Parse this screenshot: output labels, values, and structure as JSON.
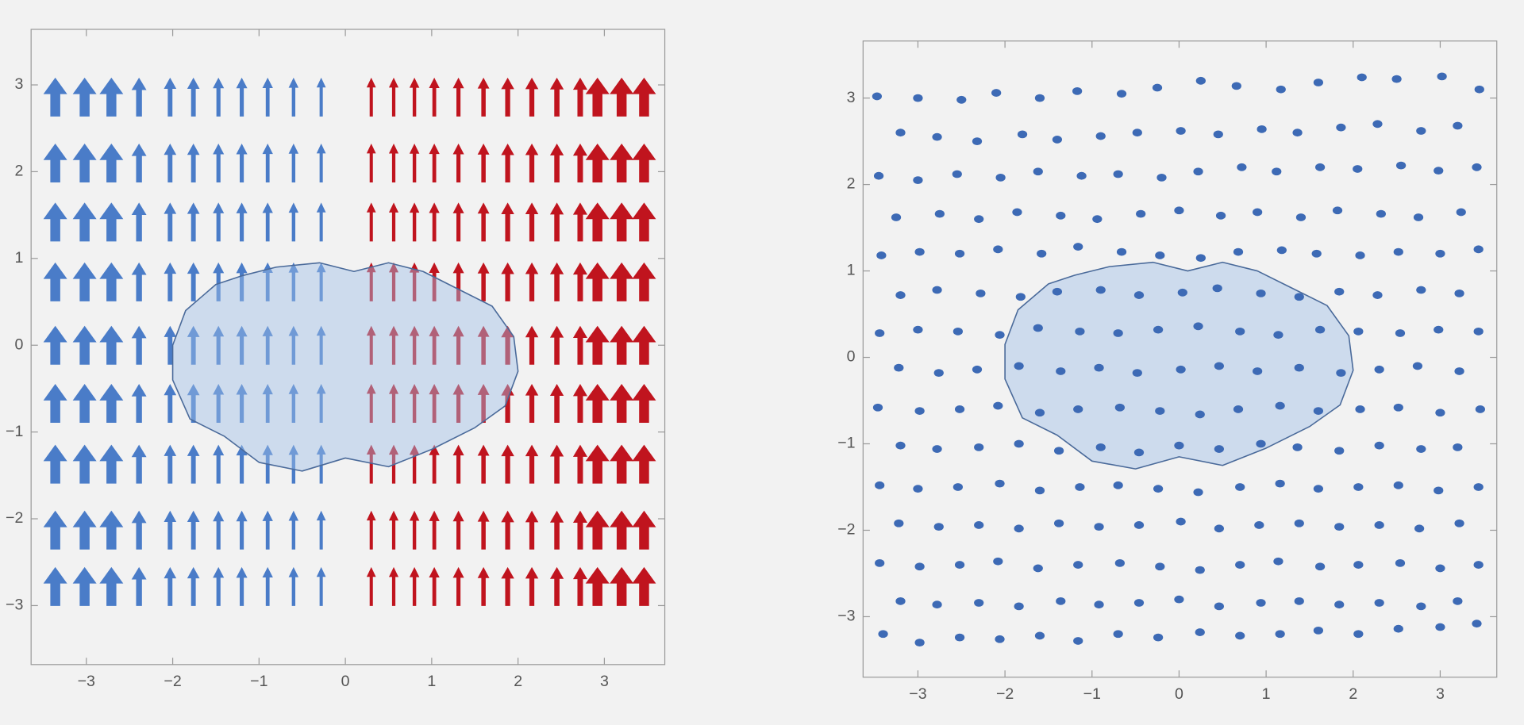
{
  "chart_data": [
    {
      "type": "vector",
      "xlim": [
        -3.64,
        3.7
      ],
      "ylim": [
        -3.68,
        3.64
      ],
      "xticks": [
        {
          "value": -3,
          "label": "−3"
        },
        {
          "value": -2,
          "label": "−2"
        },
        {
          "value": -1,
          "label": "−1"
        },
        0,
        1,
        2,
        3
      ],
      "yticks": [
        {
          "value": -3,
          "label": "−3"
        },
        {
          "value": -2,
          "label": "−2"
        },
        {
          "value": -1,
          "label": "−1"
        },
        0,
        1,
        2,
        3
      ],
      "rows": [
        2.86,
        2.1,
        1.42,
        0.73,
        0,
        -0.67,
        -1.37,
        -2.13,
        -2.78
      ],
      "series": [
        {
          "color": "#4a7cc8",
          "x": [
            -3.36,
            -3.02,
            -2.71,
            -2.39,
            -2.03,
            -1.76,
            -1.47,
            -1.2,
            -0.9,
            -0.6,
            -0.28
          ],
          "magnitudes": [
            3,
            3,
            3,
            1.6,
            1.2,
            1.2,
            1,
            1,
            0.9,
            0.8,
            0.7
          ]
        },
        {
          "color": "#c0141e",
          "x": [
            0.3,
            0.56,
            0.8,
            1.03,
            1.31,
            1.6,
            1.88,
            2.16,
            2.45,
            2.72,
            2.92,
            3.2,
            3.46
          ],
          "magnitudes": [
            0.7,
            0.75,
            0.8,
            0.9,
            1,
            1.1,
            1.3,
            1.3,
            1.4,
            1.5,
            3,
            3,
            3
          ]
        }
      ],
      "region": {
        "color": "#a0bee6",
        "x": [
          -2,
          -1.85,
          -1.5,
          -1.2,
          -0.8,
          -0.3,
          0.1,
          0.5,
          0.9,
          1.3,
          1.7,
          1.95,
          2.0,
          1.85,
          1.5,
          1.0,
          0.5,
          0,
          -0.5,
          -1.0,
          -1.4,
          -1.8,
          -2.0
        ],
        "y": [
          0,
          0.4,
          0.7,
          0.8,
          0.9,
          0.95,
          0.85,
          0.95,
          0.85,
          0.65,
          0.45,
          0.1,
          -0.3,
          -0.7,
          -0.95,
          -1.2,
          -1.4,
          -1.3,
          -1.45,
          -1.35,
          -1.05,
          -0.85,
          -0.4
        ]
      }
    },
    {
      "type": "scatter",
      "xlim": [
        -3.63,
        3.65
      ],
      "ylim": [
        -3.7,
        3.66
      ],
      "xticks": [
        {
          "value": -3,
          "label": "−3"
        },
        {
          "value": -2,
          "label": "−2"
        },
        {
          "value": -1,
          "label": "−1"
        },
        0,
        1,
        2,
        3
      ],
      "yticks": [
        {
          "value": -3,
          "label": "−3"
        },
        {
          "value": -2,
          "label": "−2"
        },
        {
          "value": -1,
          "label": "−1"
        },
        0,
        1,
        2,
        3
      ],
      "color": "#3d6ab5",
      "region": {
        "color": "#a0bee6",
        "x": [
          -2,
          -1.85,
          -1.5,
          -1.2,
          -0.8,
          -0.3,
          0.1,
          0.5,
          0.9,
          1.3,
          1.7,
          1.95,
          2.0,
          1.85,
          1.5,
          1.0,
          0.5,
          0,
          -0.5,
          -1.0,
          -1.4,
          -1.8,
          -2.0
        ],
        "y": [
          0.15,
          0.55,
          0.85,
          0.95,
          1.05,
          1.1,
          1.0,
          1.1,
          1.0,
          0.8,
          0.6,
          0.25,
          -0.15,
          -0.55,
          -0.8,
          -1.05,
          -1.25,
          -1.15,
          -1.29,
          -1.2,
          -0.9,
          -0.7,
          -0.25
        ]
      },
      "x": [
        -3.47,
        -3.0,
        -2.5,
        -2.1,
        -1.6,
        -1.17,
        -0.66,
        -0.25,
        0.25,
        0.66,
        1.17,
        1.6,
        2.1,
        2.5,
        3.02,
        3.45,
        -3.2,
        -2.78,
        -2.32,
        -1.8,
        -1.4,
        -0.9,
        -0.48,
        0.02,
        0.45,
        0.95,
        1.36,
        1.86,
        2.28,
        2.78,
        3.2,
        -3.45,
        -3.0,
        -2.55,
        -2.05,
        -1.62,
        -1.12,
        -0.7,
        -0.2,
        0.22,
        0.72,
        1.12,
        1.62,
        2.05,
        2.55,
        2.98,
        3.42,
        -3.25,
        -2.75,
        -2.3,
        -1.86,
        -1.36,
        -0.94,
        -0.44,
        0.0,
        0.48,
        0.9,
        1.4,
        1.82,
        2.32,
        2.75,
        3.24,
        -3.42,
        -2.98,
        -2.52,
        -2.08,
        -1.58,
        -1.16,
        -0.66,
        -0.22,
        0.25,
        0.68,
        1.18,
        1.58,
        2.08,
        2.52,
        3.0,
        3.44,
        -3.2,
        -2.78,
        -2.28,
        -1.82,
        -1.4,
        -0.9,
        -0.46,
        0.04,
        0.44,
        0.94,
        1.38,
        1.84,
        2.28,
        2.78,
        3.22,
        -3.44,
        -3.0,
        -2.54,
        -2.06,
        -1.62,
        -1.14,
        -0.7,
        -0.24,
        0.22,
        0.7,
        1.14,
        1.62,
        2.06,
        2.54,
        2.98,
        3.44,
        -3.22,
        -2.76,
        -2.32,
        -1.84,
        -1.36,
        -0.92,
        -0.48,
        0.02,
        0.46,
        0.9,
        1.38,
        1.86,
        2.3,
        2.74,
        3.22,
        -3.46,
        -2.98,
        -2.52,
        -2.08,
        -1.6,
        -1.16,
        -0.68,
        -0.22,
        0.24,
        0.68,
        1.16,
        1.6,
        2.08,
        2.52,
        3.0,
        3.46,
        -3.2,
        -2.78,
        -2.3,
        -1.84,
        -1.38,
        -0.9,
        -0.46,
        0.0,
        0.46,
        0.94,
        1.36,
        1.84,
        2.3,
        2.78,
        3.2,
        -3.44,
        -3.0,
        -2.54,
        -2.06,
        -1.6,
        -1.14,
        -0.7,
        -0.24,
        0.22,
        0.7,
        1.16,
        1.6,
        2.06,
        2.52,
        2.98,
        3.44,
        -3.22,
        -2.76,
        -2.3,
        -1.84,
        -1.38,
        -0.92,
        -0.46,
        0.02,
        0.46,
        0.92,
        1.38,
        1.84,
        2.3,
        2.76,
        3.22,
        -3.44,
        -2.98,
        -2.52,
        -2.08,
        -1.62,
        -1.16,
        -0.68,
        -0.22,
        0.24,
        0.7,
        1.14,
        1.62,
        2.06,
        2.54,
        3.0,
        3.44,
        -3.2,
        -2.78,
        -2.3,
        -1.84,
        -1.36,
        -0.92,
        -0.46,
        0.0,
        0.46,
        0.94,
        1.38,
        1.84,
        2.3,
        2.78,
        3.2,
        -3.4,
        -2.98,
        -2.52,
        -2.06,
        -1.6,
        -1.16,
        -0.7,
        -0.24,
        0.24,
        0.7,
        1.16,
        1.6,
        2.06,
        2.52,
        3.0,
        3.42
      ],
      "y": [
        3.02,
        3.0,
        2.98,
        3.06,
        3.0,
        3.08,
        3.05,
        3.12,
        3.2,
        3.14,
        3.1,
        3.18,
        3.24,
        3.22,
        3.25,
        3.1,
        2.6,
        2.55,
        2.5,
        2.58,
        2.52,
        2.56,
        2.6,
        2.62,
        2.58,
        2.64,
        2.6,
        2.66,
        2.7,
        2.62,
        2.68,
        2.1,
        2.05,
        2.12,
        2.08,
        2.15,
        2.1,
        2.12,
        2.08,
        2.15,
        2.2,
        2.15,
        2.2,
        2.18,
        2.22,
        2.16,
        2.2,
        1.62,
        1.66,
        1.6,
        1.68,
        1.64,
        1.6,
        1.66,
        1.7,
        1.64,
        1.68,
        1.62,
        1.7,
        1.66,
        1.62,
        1.68,
        1.18,
        1.22,
        1.2,
        1.25,
        1.2,
        1.28,
        1.22,
        1.18,
        1.15,
        1.22,
        1.24,
        1.2,
        1.18,
        1.22,
        1.2,
        1.25,
        0.72,
        0.78,
        0.74,
        0.7,
        0.76,
        0.78,
        0.72,
        0.75,
        0.8,
        0.74,
        0.7,
        0.76,
        0.72,
        0.78,
        0.74,
        0.28,
        0.32,
        0.3,
        0.26,
        0.34,
        0.3,
        0.28,
        0.32,
        0.36,
        0.3,
        0.26,
        0.32,
        0.3,
        0.28,
        0.32,
        0.3,
        -0.12,
        -0.18,
        -0.14,
        -0.1,
        -0.16,
        -0.12,
        -0.18,
        -0.14,
        -0.1,
        -0.16,
        -0.12,
        -0.18,
        -0.14,
        -0.1,
        -0.16,
        -0.58,
        -0.62,
        -0.6,
        -0.56,
        -0.64,
        -0.6,
        -0.58,
        -0.62,
        -0.66,
        -0.6,
        -0.56,
        -0.62,
        -0.6,
        -0.58,
        -0.64,
        -0.6,
        -1.02,
        -1.06,
        -1.04,
        -1.0,
        -1.08,
        -1.04,
        -1.1,
        -1.02,
        -1.06,
        -1.0,
        -1.04,
        -1.08,
        -1.02,
        -1.06,
        -1.04,
        -1.48,
        -1.52,
        -1.5,
        -1.46,
        -1.54,
        -1.5,
        -1.48,
        -1.52,
        -1.56,
        -1.5,
        -1.46,
        -1.52,
        -1.5,
        -1.48,
        -1.54,
        -1.5,
        -1.92,
        -1.96,
        -1.94,
        -1.98,
        -1.92,
        -1.96,
        -1.94,
        -1.9,
        -1.98,
        -1.94,
        -1.92,
        -1.96,
        -1.94,
        -1.98,
        -1.92,
        -2.38,
        -2.42,
        -2.4,
        -2.36,
        -2.44,
        -2.4,
        -2.38,
        -2.42,
        -2.46,
        -2.4,
        -2.36,
        -2.42,
        -2.4,
        -2.38,
        -2.44,
        -2.4,
        -2.82,
        -2.86,
        -2.84,
        -2.88,
        -2.82,
        -2.86,
        -2.84,
        -2.8,
        -2.88,
        -2.84,
        -2.82,
        -2.86,
        -2.84,
        -2.88,
        -2.82,
        -3.2,
        -3.3,
        -3.24,
        -3.26,
        -3.22,
        -3.28,
        -3.2,
        -3.24,
        -3.18,
        -3.22,
        -3.2,
        -3.16,
        -3.2,
        -3.14,
        -3.12,
        -3.08
      ]
    }
  ]
}
